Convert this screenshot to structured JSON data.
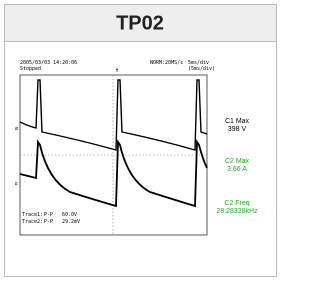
{
  "header": {
    "title": "TP02"
  },
  "scope": {
    "timestamp": "2005/03/03 14:20:06",
    "status": "Stopped",
    "acquisition": "NORM:20MS/s",
    "timebase": "5ms/div",
    "zoom_timebase": "(5ms/div)",
    "measurements": [
      {
        "label": "C1 Max",
        "value": "398 V",
        "color": "#000000"
      },
      {
        "label": "C2 Max",
        "value": "3.66 A",
        "color": "#22aa22"
      },
      {
        "label": "C2 Freq",
        "value": "28.28328kHz",
        "color": "#22aa22"
      }
    ],
    "traces": [
      {
        "name": "Trace1:",
        "kind": "P-P",
        "value": "60.0V"
      },
      {
        "name": "Trace2:",
        "kind": "P-P",
        "value": "29.2mV"
      }
    ]
  }
}
